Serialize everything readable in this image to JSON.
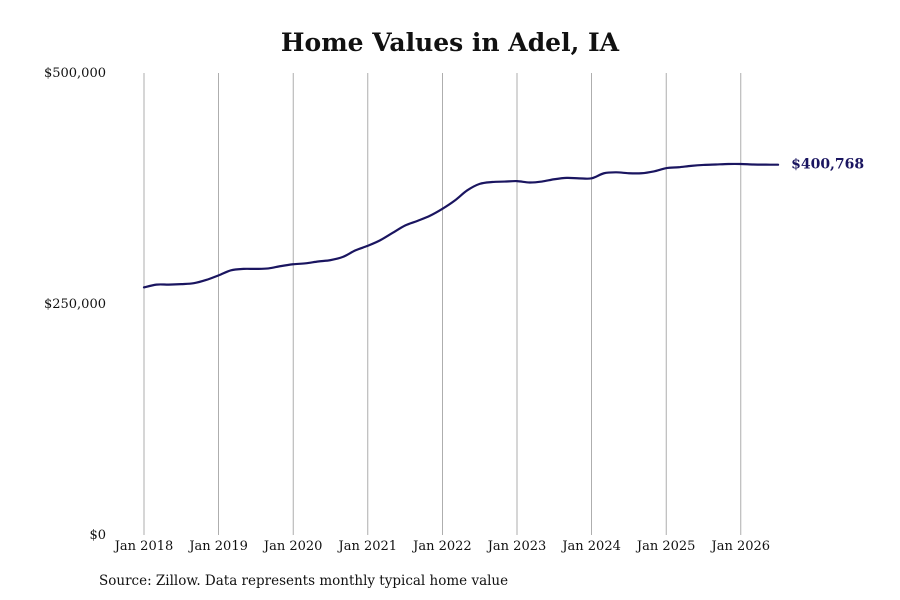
{
  "chart_data": {
    "type": "line",
    "title": "Home Values in Adel, IA",
    "source": "Source: Zillow. Data represents monthly typical home value",
    "xlabel": "",
    "ylabel": "",
    "ylim": [
      0,
      500000
    ],
    "xlim": [
      "2018-01",
      "2026-07"
    ],
    "y_ticks": [
      {
        "value": 0,
        "label": "$0"
      },
      {
        "value": 250000,
        "label": "$250,000"
      },
      {
        "value": 500000,
        "label": "$500,000"
      }
    ],
    "x_ticks": [
      {
        "value": "2018-01",
        "label": "Jan 2018"
      },
      {
        "value": "2019-01",
        "label": "Jan 2019"
      },
      {
        "value": "2020-01",
        "label": "Jan 2020"
      },
      {
        "value": "2021-01",
        "label": "Jan 2021"
      },
      {
        "value": "2022-01",
        "label": "Jan 2022"
      },
      {
        "value": "2023-01",
        "label": "Jan 2023"
      },
      {
        "value": "2024-01",
        "label": "Jan 2024"
      },
      {
        "value": "2025-01",
        "label": "Jan 2025"
      },
      {
        "value": "2026-01",
        "label": "Jan 2026"
      }
    ],
    "grid": {
      "vertical": true,
      "horizontal": false
    },
    "line_color": "#1a1560",
    "grid_color": "#999999",
    "end_label": "$400,768",
    "series": [
      {
        "x": [
          "2018-01",
          "2018-03",
          "2018-05",
          "2018-07",
          "2018-09",
          "2018-11",
          "2019-01",
          "2019-03",
          "2019-05",
          "2019-07",
          "2019-09",
          "2019-11",
          "2020-01",
          "2020-03",
          "2020-05",
          "2020-07",
          "2020-09",
          "2020-11",
          "2021-01",
          "2021-03",
          "2021-05",
          "2021-07",
          "2021-09",
          "2021-11",
          "2022-01",
          "2022-03",
          "2022-05",
          "2022-07",
          "2022-09",
          "2022-11",
          "2023-01",
          "2023-03",
          "2023-05",
          "2023-07",
          "2023-09",
          "2023-11",
          "2024-01",
          "2024-03",
          "2024-05",
          "2024-07",
          "2024-09",
          "2024-11",
          "2025-01",
          "2025-03",
          "2025-05",
          "2025-07",
          "2025-09",
          "2025-11",
          "2026-01",
          "2026-03",
          "2026-05",
          "2026-07"
        ],
        "values": [
          268000,
          271000,
          271000,
          271500,
          272500,
          276000,
          281000,
          286500,
          288000,
          288000,
          288500,
          291000,
          293000,
          294000,
          296000,
          297500,
          301000,
          308000,
          313000,
          319000,
          327000,
          335000,
          340000,
          345500,
          353000,
          362000,
          373000,
          380000,
          382000,
          382500,
          383000,
          381500,
          382500,
          385000,
          386500,
          386000,
          386000,
          391500,
          392500,
          391500,
          391500,
          393500,
          397000,
          398000,
          399500,
          400500,
          401000,
          401500,
          401500,
          401000,
          400800,
          400768
        ]
      }
    ]
  }
}
